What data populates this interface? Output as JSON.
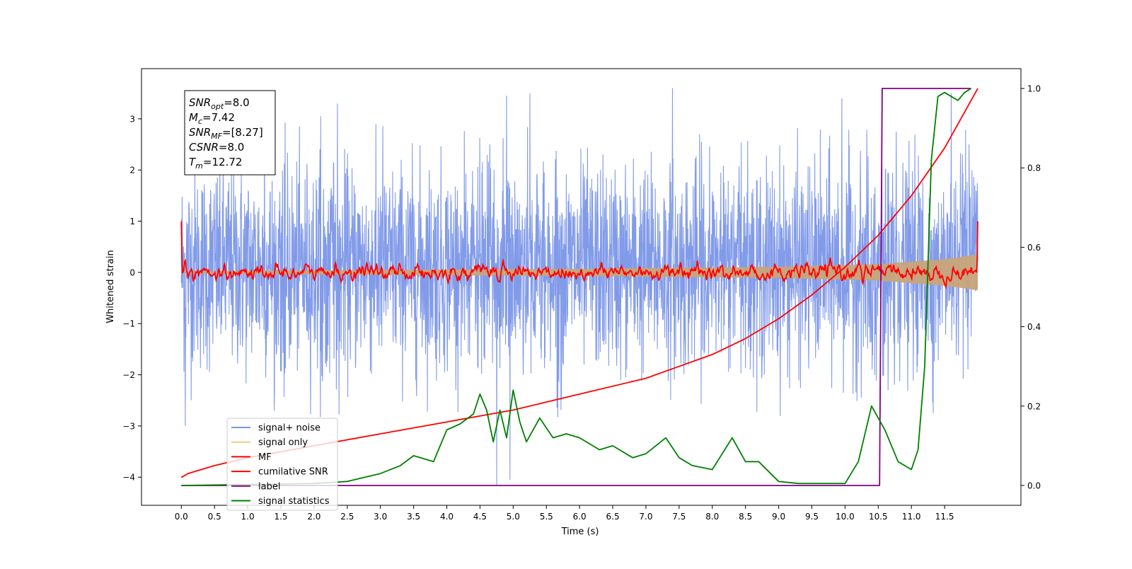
{
  "chart_data": {
    "type": "line",
    "xlabel": "Time (s)",
    "ylabel": "Whitened strain",
    "xlim": [
      -0.6,
      12.65
    ],
    "ylim": [
      -4.55,
      3.98
    ],
    "y2lim": [
      -0.05,
      1.05
    ],
    "x_ticks": [
      0.0,
      0.5,
      1.0,
      1.5,
      2.0,
      2.5,
      3.0,
      3.5,
      4.0,
      4.5,
      5.0,
      5.5,
      6.0,
      6.5,
      7.0,
      7.5,
      8.0,
      8.5,
      9.0,
      9.5,
      10.0,
      10.5,
      11.0,
      11.5
    ],
    "x_tick_labels": [
      "0.0",
      "0.5",
      "1.0",
      "1.5",
      "2.0",
      "2.5",
      "3.0",
      "3.5",
      "4.0",
      "4.5",
      "5.0",
      "5.5",
      "6.0",
      "6.5",
      "7.0",
      "7.5",
      "8.0",
      "8.5",
      "9.0",
      "9.5",
      "10.0",
      "10.5",
      "11.0",
      "11.5"
    ],
    "y_ticks": [
      3,
      2,
      1,
      0,
      -1,
      -2,
      -3,
      -4
    ],
    "y_tick_labels": [
      "3",
      "2",
      "1",
      "0",
      "−1",
      "−2",
      "−3",
      "−4"
    ],
    "y2_ticks": [
      1.0,
      0.8,
      0.6,
      0.4,
      0.2,
      0.0
    ],
    "y2_tick_labels": [
      "1.0",
      "0.8",
      "0.6",
      "0.4",
      "0.2",
      "0.0"
    ],
    "grid": false,
    "legend_position": "lower-left",
    "annotation": {
      "lines": [
        {
          "main": "SNR",
          "sub": "opt",
          "rest": "=8.0"
        },
        {
          "main": "M",
          "sub": "c",
          "rest": "=7.42"
        },
        {
          "main": "SNR",
          "sub": "MF",
          "rest": "=[8.27]"
        },
        {
          "main": "CSNR",
          "sub": "",
          "rest": "=8.0"
        },
        {
          "main": "T",
          "sub": "m",
          "rest": "=12.72"
        }
      ]
    },
    "series": [
      {
        "name": "signal+ noise",
        "color": "#7b96e8",
        "axis": "left",
        "style": "noise",
        "x_range": [
          0.0,
          12.0
        ],
        "typical_range": [
          -1.7,
          1.9
        ],
        "peaks": [
          [
            0.06,
            -3.0
          ],
          [
            4.75,
            -4.15
          ],
          [
            4.95,
            -4.05
          ],
          [
            7.4,
            3.6
          ],
          [
            4.9,
            3.45
          ],
          [
            5.25,
            3.5
          ],
          [
            2.35,
            3.3
          ],
          [
            1.25,
            3.1
          ],
          [
            9.95,
            3.4
          ],
          [
            11.6,
            3.5
          ],
          [
            2.1,
            3.05
          ]
        ]
      },
      {
        "name": "signal only",
        "color": "#c8a47a",
        "axis": "left",
        "style": "envelope",
        "x": [
          0.0,
          3.0,
          6.0,
          9.0,
          10.5,
          11.5,
          12.0
        ],
        "y": [
          0.02,
          0.05,
          0.07,
          0.11,
          0.16,
          0.26,
          0.35
        ]
      },
      {
        "name": "MF",
        "color": "#ff0000",
        "axis": "left",
        "style": "mf",
        "x_range": [
          0.0,
          12.0
        ],
        "amplitude": 0.25,
        "edge_value": 1.0
      },
      {
        "name": "cumilative SNR",
        "color": "#ff0000",
        "axis": "right",
        "x": [
          0.0,
          0.1,
          0.5,
          1.0,
          2.0,
          3.0,
          4.0,
          5.0,
          6.0,
          7.0,
          7.5,
          8.0,
          8.5,
          9.0,
          9.5,
          10.0,
          10.5,
          11.0,
          11.5,
          12.0
        ],
        "y": [
          0.02,
          0.03,
          0.05,
          0.07,
          0.1,
          0.13,
          0.16,
          0.19,
          0.23,
          0.27,
          0.3,
          0.33,
          0.37,
          0.42,
          0.48,
          0.55,
          0.63,
          0.73,
          0.85,
          1.0
        ]
      },
      {
        "name": "label",
        "color": "#800080",
        "axis": "right",
        "x": [
          0.0,
          10.52,
          10.56,
          11.9
        ],
        "y": [
          0.0,
          0.0,
          1.0,
          1.0
        ]
      },
      {
        "name": "signal statistics",
        "color": "#008000",
        "axis": "right",
        "x": [
          0.0,
          2.0,
          2.5,
          3.0,
          3.3,
          3.5,
          3.8,
          4.0,
          4.2,
          4.4,
          4.5,
          4.6,
          4.7,
          4.8,
          4.9,
          5.0,
          5.1,
          5.2,
          5.4,
          5.6,
          5.8,
          6.0,
          6.3,
          6.5,
          6.8,
          7.0,
          7.3,
          7.5,
          7.7,
          8.0,
          8.3,
          8.5,
          8.7,
          9.0,
          9.3,
          9.5,
          10.0,
          10.2,
          10.4,
          10.5,
          10.6,
          10.8,
          11.0,
          11.1,
          11.2,
          11.3,
          11.4,
          11.5,
          11.6,
          11.7,
          11.8,
          11.9
        ],
        "y": [
          0.0,
          0.005,
          0.01,
          0.03,
          0.05,
          0.075,
          0.06,
          0.14,
          0.155,
          0.18,
          0.23,
          0.19,
          0.11,
          0.19,
          0.12,
          0.24,
          0.16,
          0.11,
          0.17,
          0.12,
          0.13,
          0.12,
          0.09,
          0.1,
          0.07,
          0.08,
          0.12,
          0.07,
          0.05,
          0.04,
          0.12,
          0.06,
          0.06,
          0.01,
          0.005,
          0.005,
          0.005,
          0.06,
          0.2,
          0.17,
          0.14,
          0.06,
          0.04,
          0.09,
          0.3,
          0.82,
          0.98,
          0.99,
          0.98,
          0.97,
          0.99,
          1.0
        ]
      }
    ]
  }
}
